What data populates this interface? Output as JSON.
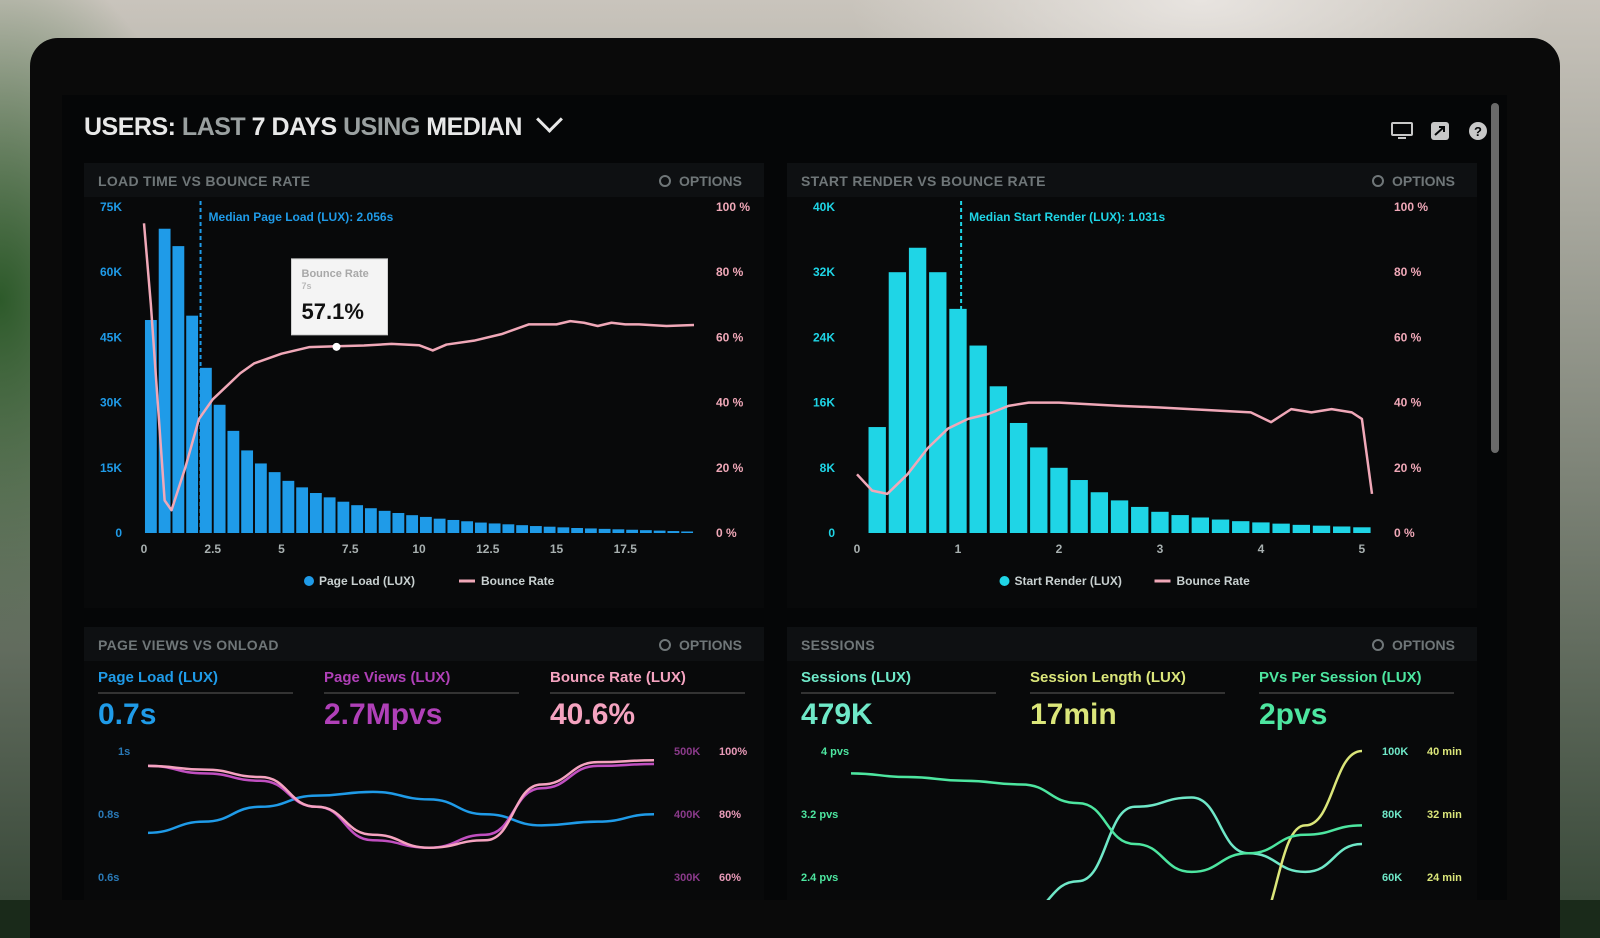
{
  "header": {
    "title_a": "USERS:",
    "title_b": "LAST",
    "title_c": "7 DAYS",
    "title_d": "USING",
    "title_e": "MEDIAN"
  },
  "options_label": "OPTIONS",
  "colors": {
    "blue": "#1f9be8",
    "cyan": "#1fd5e6",
    "pink": "#f0a8b8",
    "purple": "#c04fc0",
    "lightpink": "#f5a3c0",
    "green": "#4de6a0",
    "yellow": "#dbe67a"
  },
  "panels": {
    "p1": {
      "title": "LOAD TIME VS BOUNCE RATE"
    },
    "p2": {
      "title": "START RENDER VS BOUNCE RATE"
    },
    "p3": {
      "title": "PAGE VIEWS VS ONLOAD"
    },
    "p4": {
      "title": "SESSIONS"
    }
  },
  "metrics": {
    "p3": [
      {
        "label": "Page Load (LUX)",
        "value": "0.7s",
        "color": "#1f9be8"
      },
      {
        "label": "Page Views (LUX)",
        "value": "2.7Mpvs",
        "color": "#b040b8"
      },
      {
        "label": "Bounce Rate (LUX)",
        "value": "40.6%",
        "color": "#f5a3c0"
      }
    ],
    "p4": [
      {
        "label": "Sessions (LUX)",
        "value": "479K",
        "color": "#6fe8c8"
      },
      {
        "label": "Session Length (LUX)",
        "value": "17min",
        "color": "#dbe67a"
      },
      {
        "label": "PVs Per Session (LUX)",
        "value": "2pvs",
        "color": "#4de6a0"
      }
    ]
  },
  "chart_data": [
    {
      "type": "bar",
      "title": "LOAD TIME VS BOUNCE RATE",
      "x_ticks": [
        "0",
        "2.5",
        "5",
        "7.5",
        "10",
        "12.5",
        "15",
        "17.5"
      ],
      "xlim": [
        0,
        20
      ],
      "y_ticks": [
        "0",
        "15K",
        "30K",
        "45K",
        "60K",
        "75K"
      ],
      "ylim": [
        0,
        75000
      ],
      "y2_ticks": [
        "0 %",
        "20 %",
        "40 %",
        "60 %",
        "80 %",
        "100 %"
      ],
      "y2lim": [
        0,
        100
      ],
      "median_label": "Median Page Load (LUX): 2.056s",
      "median_x": 2.056,
      "tooltip": {
        "title": "Bounce Rate",
        "sub": "7s",
        "value": "57.1%",
        "x": 7
      },
      "legend": [
        "Page Load (LUX)",
        "Bounce Rate"
      ],
      "series": [
        {
          "name": "Page Load (LUX)",
          "type": "bar",
          "x": [
            0.25,
            0.75,
            1.25,
            1.75,
            2.25,
            2.75,
            3.25,
            3.75,
            4.25,
            4.75,
            5.25,
            5.75,
            6.25,
            6.75,
            7.25,
            7.75,
            8.25,
            8.75,
            9.25,
            9.75,
            10.25,
            10.75,
            11.25,
            11.75,
            12.25,
            12.75,
            13.25,
            13.75,
            14.25,
            14.75,
            15.25,
            15.75,
            16.25,
            16.75,
            17.25,
            17.75,
            18.25,
            18.75,
            19.25,
            19.75
          ],
          "values": [
            49000,
            70000,
            66000,
            50000,
            38000,
            29500,
            23500,
            19000,
            16000,
            14000,
            12000,
            10500,
            9200,
            8200,
            7200,
            6400,
            5700,
            5100,
            4600,
            4100,
            3700,
            3300,
            3000,
            2700,
            2400,
            2200,
            2000,
            1800,
            1600,
            1450,
            1300,
            1150,
            1050,
            950,
            850,
            750,
            650,
            550,
            450,
            350
          ]
        },
        {
          "name": "Bounce Rate",
          "type": "line",
          "x": [
            0,
            0.25,
            0.5,
            0.75,
            1,
            1.5,
            2,
            2.5,
            3,
            3.5,
            4,
            5,
            6,
            7,
            8,
            9,
            10,
            10.5,
            11,
            12,
            13,
            14,
            15,
            15.5,
            16,
            16.5,
            17,
            17.5,
            18,
            19,
            20
          ],
          "values": [
            95,
            70,
            40,
            10,
            7,
            20,
            35,
            41,
            45,
            49,
            52,
            55,
            57,
            57.3,
            57.5,
            58,
            57.6,
            56,
            57.8,
            59,
            61,
            64,
            64,
            65,
            64.5,
            63.5,
            64.5,
            64,
            64,
            63.5,
            63.8
          ]
        }
      ]
    },
    {
      "type": "bar",
      "title": "START RENDER VS BOUNCE RATE",
      "x_ticks": [
        "0",
        "1",
        "2",
        "3",
        "4",
        "5"
      ],
      "xlim": [
        0,
        5.1
      ],
      "y_ticks": [
        "0",
        "8K",
        "16K",
        "24K",
        "32K",
        "40K"
      ],
      "ylim": [
        0,
        40000
      ],
      "y2_ticks": [
        "0 %",
        "20 %",
        "40 %",
        "60 %",
        "80 %",
        "100 %"
      ],
      "y2lim": [
        0,
        100
      ],
      "median_label": "Median Start Render (LUX): 1.031s",
      "median_x": 1.031,
      "legend": [
        "Start Render (LUX)",
        "Bounce Rate"
      ],
      "series": [
        {
          "name": "Start Render (LUX)",
          "type": "bar",
          "x": [
            0.2,
            0.4,
            0.6,
            0.8,
            1.0,
            1.2,
            1.4,
            1.6,
            1.8,
            2.0,
            2.2,
            2.4,
            2.6,
            2.8,
            3.0,
            3.2,
            3.4,
            3.6,
            3.8,
            4.0,
            4.2,
            4.4,
            4.6,
            4.8,
            5.0
          ],
          "values": [
            13000,
            32000,
            35000,
            32000,
            27500,
            23000,
            18000,
            13500,
            10500,
            8000,
            6500,
            5000,
            4000,
            3200,
            2600,
            2200,
            1900,
            1650,
            1450,
            1300,
            1150,
            1000,
            900,
            800,
            700
          ]
        },
        {
          "name": "Bounce Rate",
          "type": "line",
          "x": [
            0,
            0.15,
            0.3,
            0.5,
            0.7,
            0.9,
            1.1,
            1.3,
            1.5,
            1.7,
            2,
            2.3,
            2.6,
            3,
            3.3,
            3.6,
            3.9,
            4.1,
            4.3,
            4.5,
            4.7,
            4.9,
            5.0,
            5.1
          ],
          "values": [
            18,
            13,
            12,
            18,
            26,
            32,
            35,
            36.5,
            39,
            40,
            40,
            39.5,
            39,
            38.5,
            38,
            37.5,
            37,
            34,
            38,
            37,
            38,
            37,
            35,
            12
          ]
        }
      ]
    },
    {
      "type": "line",
      "title": "PAGE VIEWS VS ONLOAD",
      "y_ticks_left": [
        "1s",
        "0.8s",
        "0.6s"
      ],
      "y_ticks_right_a": [
        "500K",
        "400K",
        "300K"
      ],
      "y_ticks_right_b": [
        "100%",
        "80%",
        "60%"
      ],
      "series": [
        {
          "name": "Page Load (LUX)",
          "values": [
            0.56,
            0.62,
            0.7,
            0.76,
            0.78,
            0.74,
            0.66,
            0.6,
            0.62,
            0.66
          ]
        },
        {
          "name": "Page Views (LUX)",
          "values": [
            0.92,
            0.88,
            0.84,
            0.7,
            0.52,
            0.48,
            0.55,
            0.8,
            0.92,
            0.93
          ]
        },
        {
          "name": "Bounce Rate (LUX)",
          "values": [
            0.92,
            0.9,
            0.86,
            0.7,
            0.55,
            0.48,
            0.52,
            0.82,
            0.94,
            0.95
          ]
        }
      ]
    },
    {
      "type": "line",
      "title": "SESSIONS",
      "y_ticks_left": [
        "4 pvs",
        "3.2 pvs",
        "2.4 pvs"
      ],
      "y_ticks_right_a": [
        "100K",
        "80K",
        "60K"
      ],
      "y_ticks_right_b": [
        "40 min",
        "32 min",
        "24 min"
      ],
      "series": [
        {
          "name": "Sessions (LUX)",
          "values": [
            0.0,
            0.02,
            0.06,
            0.12,
            0.3,
            0.7,
            0.75,
            0.45,
            0.35,
            0.5
          ]
        },
        {
          "name": "Session Length (LUX)",
          "values": [
            0.0,
            0.0,
            0.0,
            0.0,
            0.0,
            0.0,
            0.0,
            0.0,
            0.6,
            1.0
          ]
        },
        {
          "name": "PVs Per Session (LUX)",
          "values": [
            0.88,
            0.86,
            0.84,
            0.82,
            0.72,
            0.5,
            0.35,
            0.45,
            0.55,
            0.6
          ]
        }
      ]
    }
  ]
}
